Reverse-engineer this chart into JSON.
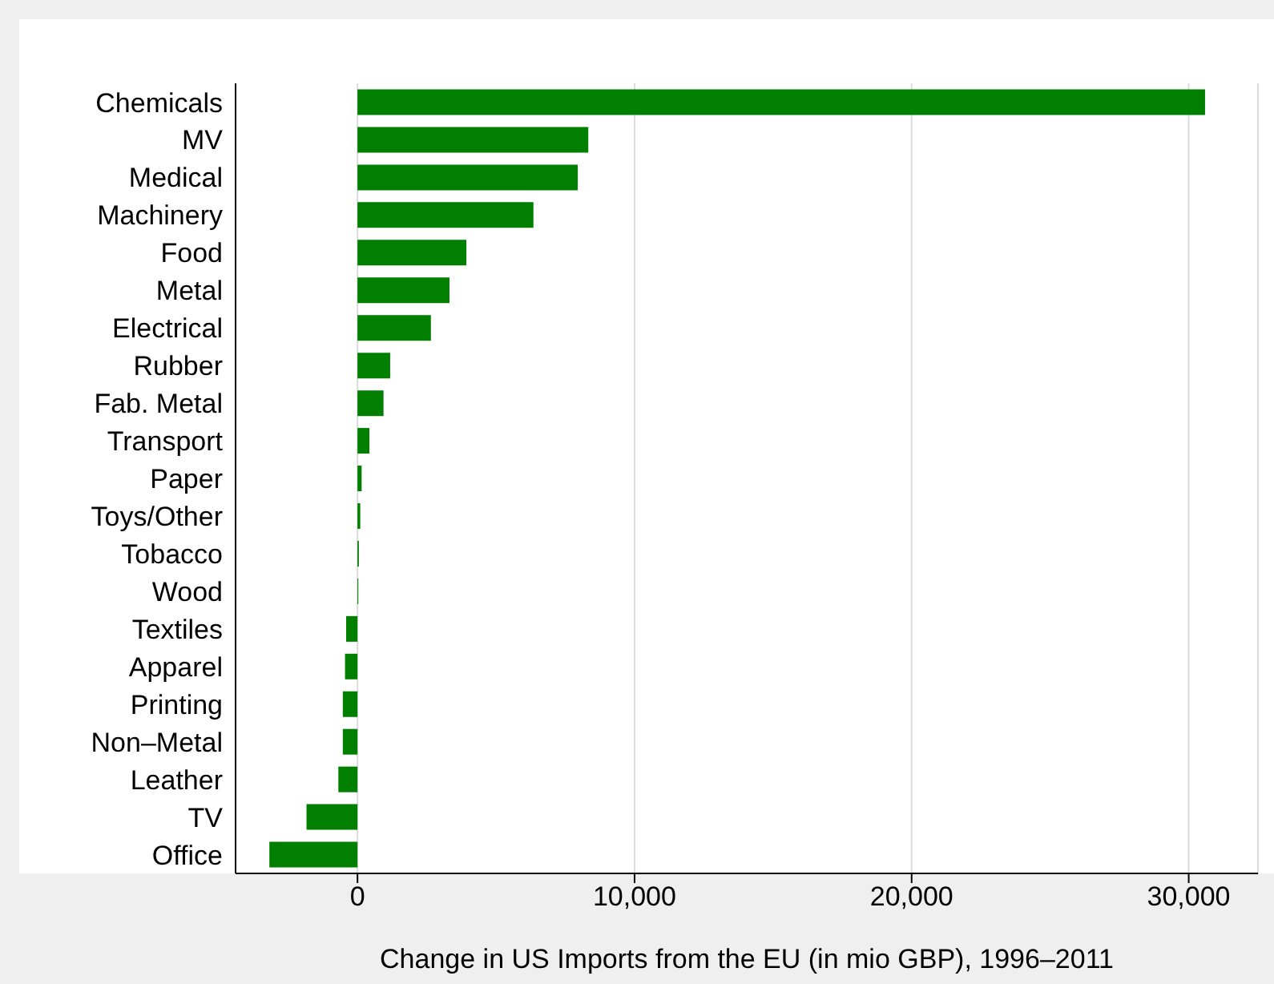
{
  "chart_data": {
    "type": "bar",
    "orientation": "horizontal",
    "xlabel": "Change in US Imports from the EU (in mio GBP), 1996–2011",
    "categories": [
      "Chemicals",
      "MV",
      "Medical",
      "Machinery",
      "Food",
      "Metal",
      "Electrical",
      "Rubber",
      "Fab. Metal",
      "Transport",
      "Paper",
      "Toys/Other",
      "Tobacco",
      "Wood",
      "Textiles",
      "Apparel",
      "Printing",
      "Non–Metal",
      "Leather",
      "TV",
      "Office"
    ],
    "values": [
      30590,
      8330,
      7950,
      6350,
      3930,
      3320,
      2650,
      1180,
      940,
      430,
      150,
      100,
      50,
      30,
      -410,
      -450,
      -530,
      -530,
      -690,
      -1840,
      -3180
    ],
    "color": "#007f00",
    "xlim": [
      -4400,
      32500
    ],
    "xticks": [
      {
        "value": 0,
        "label": "0"
      },
      {
        "value": 10000,
        "label": "10,000"
      },
      {
        "value": 20000,
        "label": "20,000"
      },
      {
        "value": 30000,
        "label": "30,000"
      }
    ],
    "grid": "x"
  }
}
